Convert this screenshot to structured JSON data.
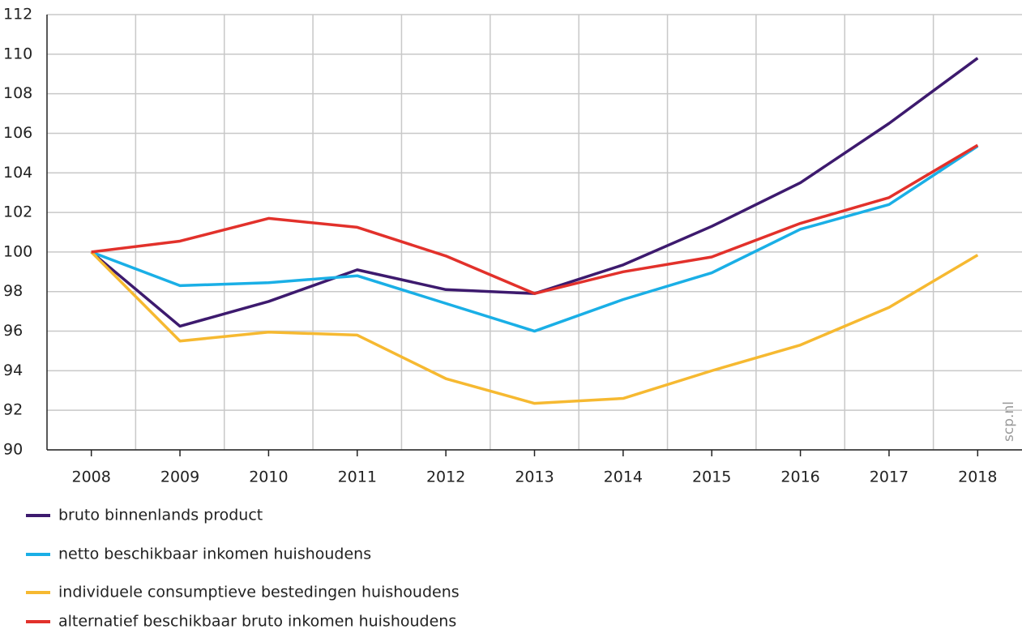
{
  "chart_data": {
    "type": "line",
    "categories": [
      "2008",
      "2009",
      "2010",
      "2011",
      "2012",
      "2013",
      "2014",
      "2015",
      "2016",
      "2017",
      "2018"
    ],
    "series": [
      {
        "name": "bruto binnenlands product",
        "color": "#3d1a6e",
        "values": [
          100,
          96.25,
          97.5,
          99.1,
          98.1,
          97.9,
          99.35,
          101.3,
          103.5,
          106.5,
          109.8
        ]
      },
      {
        "name": "netto beschikbaar inkomen huishoudens",
        "color": "#1aafe6",
        "values": [
          100,
          98.3,
          98.45,
          98.8,
          97.4,
          96.0,
          97.6,
          98.95,
          101.15,
          102.4,
          105.35
        ]
      },
      {
        "name": "individuele consumptieve bestedingen huishoudens",
        "color": "#f6b931",
        "values": [
          100,
          95.5,
          95.95,
          95.8,
          93.6,
          92.35,
          92.6,
          94.0,
          95.3,
          97.2,
          99.85
        ]
      },
      {
        "name": "alternatief beschikbaar bruto inkomen huishoudens",
        "color": "#e2312b",
        "values": [
          100,
          100.55,
          101.7,
          101.25,
          99.8,
          97.9,
          99.0,
          99.75,
          101.45,
          102.75,
          105.4
        ]
      }
    ],
    "ylim": [
      90,
      112
    ],
    "yticks": [
      90,
      92,
      94,
      96,
      98,
      100,
      102,
      104,
      106,
      108,
      110,
      112
    ],
    "grid": true,
    "legend": "bottom",
    "watermark": "scp.nl"
  }
}
